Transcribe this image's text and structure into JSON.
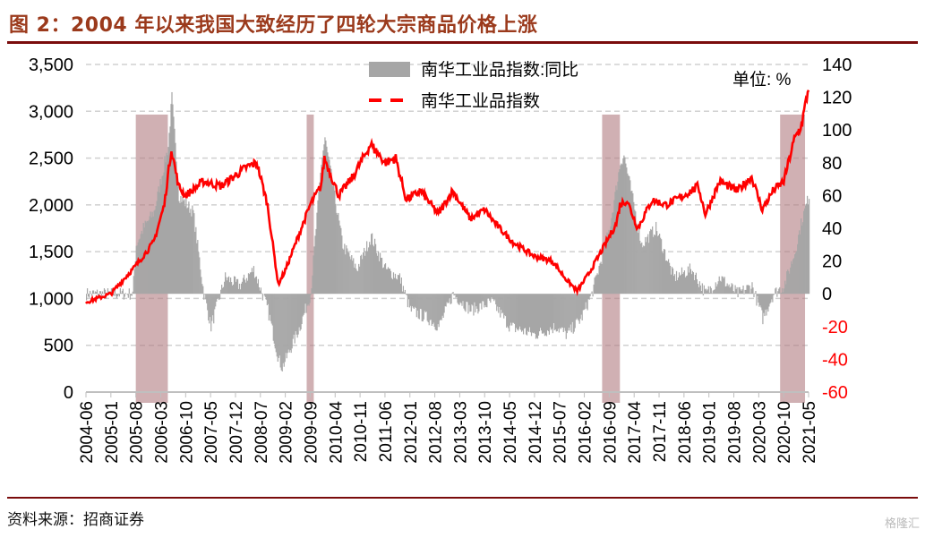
{
  "title": "图 2：2004 年以来我国大致经历了四轮大宗商品价格上涨",
  "source": "资料来源：招商证券",
  "watermark": "格隆汇",
  "chart_data": {
    "type": "bar+line",
    "unit_label": "单位: %",
    "x_start": "2004-06",
    "x_end": "2021-05",
    "x_ticks": [
      "2004-06",
      "2005-01",
      "2005-08",
      "2006-03",
      "2006-10",
      "2007-05",
      "2007-12",
      "2008-07",
      "2009-02",
      "2009-09",
      "2010-04",
      "2010-11",
      "2011-06",
      "2012-01",
      "2012-08",
      "2013-03",
      "2013-10",
      "2014-05",
      "2014-12",
      "2015-07",
      "2016-02",
      "2016-09",
      "2017-04",
      "2017-11",
      "2018-06",
      "2019-01",
      "2019-08",
      "2020-03",
      "2020-10",
      "2021-05"
    ],
    "y_left": {
      "ticks": [
        0,
        500,
        1000,
        1500,
        2000,
        2500,
        3000,
        3500
      ],
      "labels": [
        "0",
        "500",
        "1,000",
        "1,500",
        "2,000",
        "2,500",
        "3,000",
        "3,500"
      ],
      "range": [
        0,
        3500
      ]
    },
    "y_right": {
      "ticks": [
        -60,
        -40,
        -20,
        0,
        20,
        40,
        60,
        80,
        100,
        120,
        140
      ],
      "labels": [
        "-60",
        "-40",
        "-20",
        "0",
        "20",
        "40",
        "60",
        "80",
        "100",
        "120",
        "140"
      ],
      "range": [
        -60,
        140
      ],
      "color": "#ff0000"
    },
    "grid": "horizontal-dashed",
    "legend_position": "top-center",
    "series": [
      {
        "name": "南华工业品指数:同比",
        "type": "bar",
        "axis": "right",
        "color": "#a6a6a6",
        "points": [
          [
            "2004-06",
            0
          ],
          [
            "2005-01",
            0
          ],
          [
            "2005-07",
            0
          ],
          [
            "2005-08",
            30
          ],
          [
            "2005-10",
            40
          ],
          [
            "2006-01",
            50
          ],
          [
            "2006-05",
            90
          ],
          [
            "2006-06",
            120
          ],
          [
            "2006-08",
            60
          ],
          [
            "2006-12",
            50
          ],
          [
            "2007-03",
            0
          ],
          [
            "2007-05",
            -20
          ],
          [
            "2007-09",
            10
          ],
          [
            "2008-01",
            5
          ],
          [
            "2008-05",
            15
          ],
          [
            "2008-09",
            -10
          ],
          [
            "2008-12",
            -40
          ],
          [
            "2009-01",
            -45
          ],
          [
            "2009-06",
            -20
          ],
          [
            "2009-09",
            0
          ],
          [
            "2009-12",
            80
          ],
          [
            "2010-01",
            95
          ],
          [
            "2010-06",
            30
          ],
          [
            "2010-10",
            15
          ],
          [
            "2011-02",
            35
          ],
          [
            "2011-06",
            15
          ],
          [
            "2011-10",
            10
          ],
          [
            "2012-01",
            -10
          ],
          [
            "2012-06",
            -15
          ],
          [
            "2012-09",
            -20
          ],
          [
            "2013-01",
            0
          ],
          [
            "2013-06",
            -10
          ],
          [
            "2013-12",
            -5
          ],
          [
            "2014-05",
            -20
          ],
          [
            "2014-12",
            -25
          ],
          [
            "2015-06",
            -20
          ],
          [
            "2015-09",
            -25
          ],
          [
            "2016-01",
            -15
          ],
          [
            "2016-04",
            0
          ],
          [
            "2016-09",
            40
          ],
          [
            "2016-12",
            80
          ],
          [
            "2017-01",
            85
          ],
          [
            "2017-06",
            30
          ],
          [
            "2017-10",
            40
          ],
          [
            "2018-03",
            10
          ],
          [
            "2018-08",
            15
          ],
          [
            "2018-12",
            0
          ],
          [
            "2019-04",
            10
          ],
          [
            "2019-09",
            0
          ],
          [
            "2020-01",
            5
          ],
          [
            "2020-04",
            -15
          ],
          [
            "2020-07",
            0
          ],
          [
            "2020-10",
            5
          ],
          [
            "2021-01",
            25
          ],
          [
            "2021-03",
            45
          ],
          [
            "2021-05",
            60
          ]
        ]
      },
      {
        "name": "南华工业品指数",
        "type": "line",
        "axis": "left",
        "color": "#ff0000",
        "points": [
          [
            "2004-06",
            960
          ],
          [
            "2005-01",
            1050
          ],
          [
            "2005-08",
            1350
          ],
          [
            "2006-01",
            1600
          ],
          [
            "2006-04",
            2000
          ],
          [
            "2006-06",
            2600
          ],
          [
            "2006-08",
            2200
          ],
          [
            "2006-10",
            2100
          ],
          [
            "2007-03",
            2250
          ],
          [
            "2007-08",
            2200
          ],
          [
            "2008-03",
            2400
          ],
          [
            "2008-06",
            2450
          ],
          [
            "2008-09",
            2000
          ],
          [
            "2008-12",
            1150
          ],
          [
            "2009-02",
            1300
          ],
          [
            "2009-06",
            1700
          ],
          [
            "2009-09",
            2000
          ],
          [
            "2009-12",
            2200
          ],
          [
            "2010-01",
            2500
          ],
          [
            "2010-05",
            2100
          ],
          [
            "2010-09",
            2300
          ],
          [
            "2011-02",
            2650
          ],
          [
            "2011-06",
            2450
          ],
          [
            "2011-09",
            2500
          ],
          [
            "2011-12",
            2050
          ],
          [
            "2012-04",
            2150
          ],
          [
            "2012-09",
            1900
          ],
          [
            "2013-01",
            2150
          ],
          [
            "2013-06",
            1850
          ],
          [
            "2013-10",
            1950
          ],
          [
            "2014-01",
            1800
          ],
          [
            "2014-06",
            1600
          ],
          [
            "2014-12",
            1450
          ],
          [
            "2015-05",
            1400
          ],
          [
            "2015-09",
            1200
          ],
          [
            "2015-12",
            1080
          ],
          [
            "2016-03",
            1250
          ],
          [
            "2016-06",
            1450
          ],
          [
            "2016-11",
            1800
          ],
          [
            "2016-12",
            2000
          ],
          [
            "2017-02",
            2050
          ],
          [
            "2017-05",
            1750
          ],
          [
            "2017-09",
            2050
          ],
          [
            "2018-01",
            2000
          ],
          [
            "2018-06",
            2100
          ],
          [
            "2018-10",
            2200
          ],
          [
            "2018-12",
            1900
          ],
          [
            "2019-04",
            2250
          ],
          [
            "2019-09",
            2150
          ],
          [
            "2020-01",
            2300
          ],
          [
            "2020-04",
            1950
          ],
          [
            "2020-07",
            2150
          ],
          [
            "2020-10",
            2250
          ],
          [
            "2021-01",
            2700
          ],
          [
            "2021-03",
            2850
          ],
          [
            "2021-05",
            3250
          ]
        ]
      }
    ],
    "shaded_periods": [
      [
        "2005-08",
        "2006-05"
      ],
      [
        "2009-08",
        "2009-10"
      ],
      [
        "2016-07",
        "2016-12"
      ],
      [
        "2020-09",
        "2021-04"
      ]
    ],
    "shade_color": "#b07b80"
  }
}
